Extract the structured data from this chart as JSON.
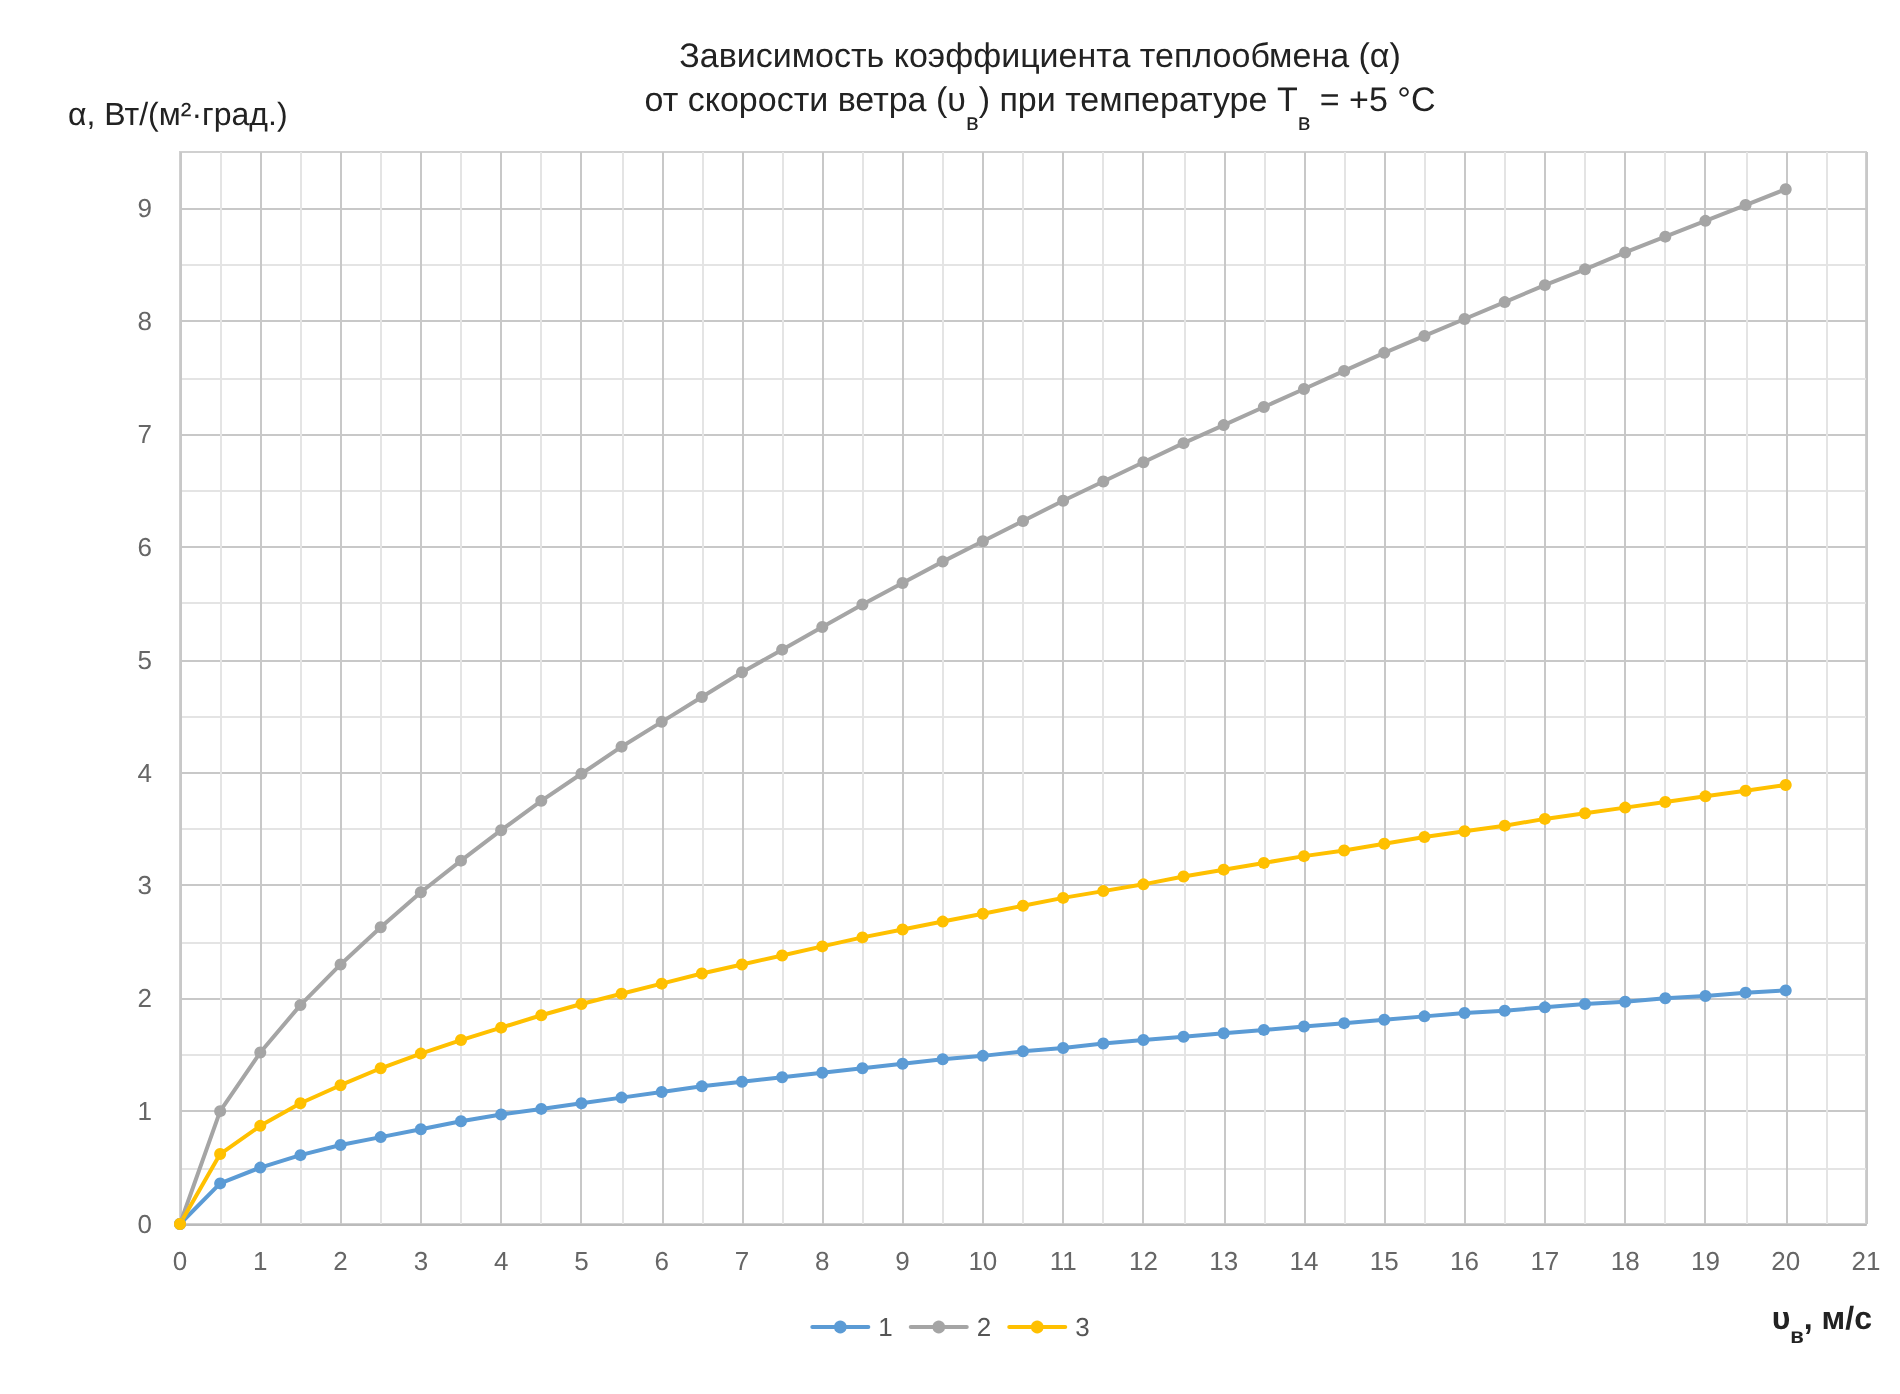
{
  "chart_data": {
    "type": "line",
    "title": "Зависимость коэффициента теплообмена (α)\nот скорости ветра (υ$_{в}$) при температуре T$_{в}$ = +5 °C",
    "xlabel": "υ$_{в}$, м/с",
    "ylabel": "α, Вт/(м²·град.)",
    "x": [
      0,
      0.5,
      1,
      1.5,
      2,
      2.5,
      3,
      3.5,
      4,
      4.5,
      5,
      5.5,
      6,
      6.5,
      7,
      7.5,
      8,
      8.5,
      9,
      9.5,
      10,
      10.5,
      11,
      11.5,
      12,
      12.5,
      13,
      13.5,
      14,
      14.5,
      15,
      15.5,
      16,
      16.5,
      17,
      17.5,
      18,
      18.5,
      19,
      19.5,
      20
    ],
    "series": [
      {
        "name": "1",
        "color": "#5b9bd5",
        "values": [
          0,
          0.36,
          0.5,
          0.61,
          0.7,
          0.77,
          0.84,
          0.91,
          0.97,
          1.02,
          1.07,
          1.12,
          1.17,
          1.22,
          1.26,
          1.3,
          1.34,
          1.38,
          1.42,
          1.46,
          1.49,
          1.53,
          1.56,
          1.6,
          1.63,
          1.66,
          1.69,
          1.72,
          1.75,
          1.78,
          1.81,
          1.84,
          1.87,
          1.89,
          1.92,
          1.95,
          1.97,
          2.0,
          2.02,
          2.05,
          2.07
        ]
      },
      {
        "name": "2",
        "color": "#a5a5a5",
        "values": [
          0,
          1.0,
          1.52,
          1.94,
          2.3,
          2.63,
          2.94,
          3.22,
          3.49,
          3.75,
          3.99,
          4.23,
          4.45,
          4.67,
          4.89,
          5.09,
          5.29,
          5.49,
          5.68,
          5.87,
          6.05,
          6.23,
          6.41,
          6.58,
          6.75,
          6.92,
          7.08,
          7.24,
          7.4,
          7.56,
          7.72,
          7.87,
          8.02,
          8.17,
          8.32,
          8.46,
          8.61,
          8.75,
          8.89,
          9.03,
          9.17
        ]
      },
      {
        "name": "3",
        "color": "#ffc000",
        "values": [
          0,
          0.62,
          0.87,
          1.07,
          1.23,
          1.38,
          1.51,
          1.63,
          1.74,
          1.85,
          1.95,
          2.04,
          2.13,
          2.22,
          2.3,
          2.38,
          2.46,
          2.54,
          2.61,
          2.68,
          2.75,
          2.82,
          2.89,
          2.95,
          3.01,
          3.08,
          3.14,
          3.2,
          3.26,
          3.31,
          3.37,
          3.43,
          3.48,
          3.53,
          3.59,
          3.64,
          3.69,
          3.74,
          3.79,
          3.84,
          3.89
        ]
      }
    ],
    "xlim": [
      0,
      21
    ],
    "xticks": [
      0,
      1,
      2,
      3,
      4,
      5,
      6,
      7,
      8,
      9,
      10,
      11,
      12,
      13,
      14,
      15,
      16,
      17,
      18,
      19,
      20,
      21
    ],
    "ylim": [
      0,
      9.5
    ],
    "yticks": [
      0,
      1,
      2,
      3,
      4,
      5,
      6,
      7,
      8,
      9
    ],
    "grid": true,
    "legend": "bottom",
    "marker": "circle",
    "line_style": "solid"
  }
}
